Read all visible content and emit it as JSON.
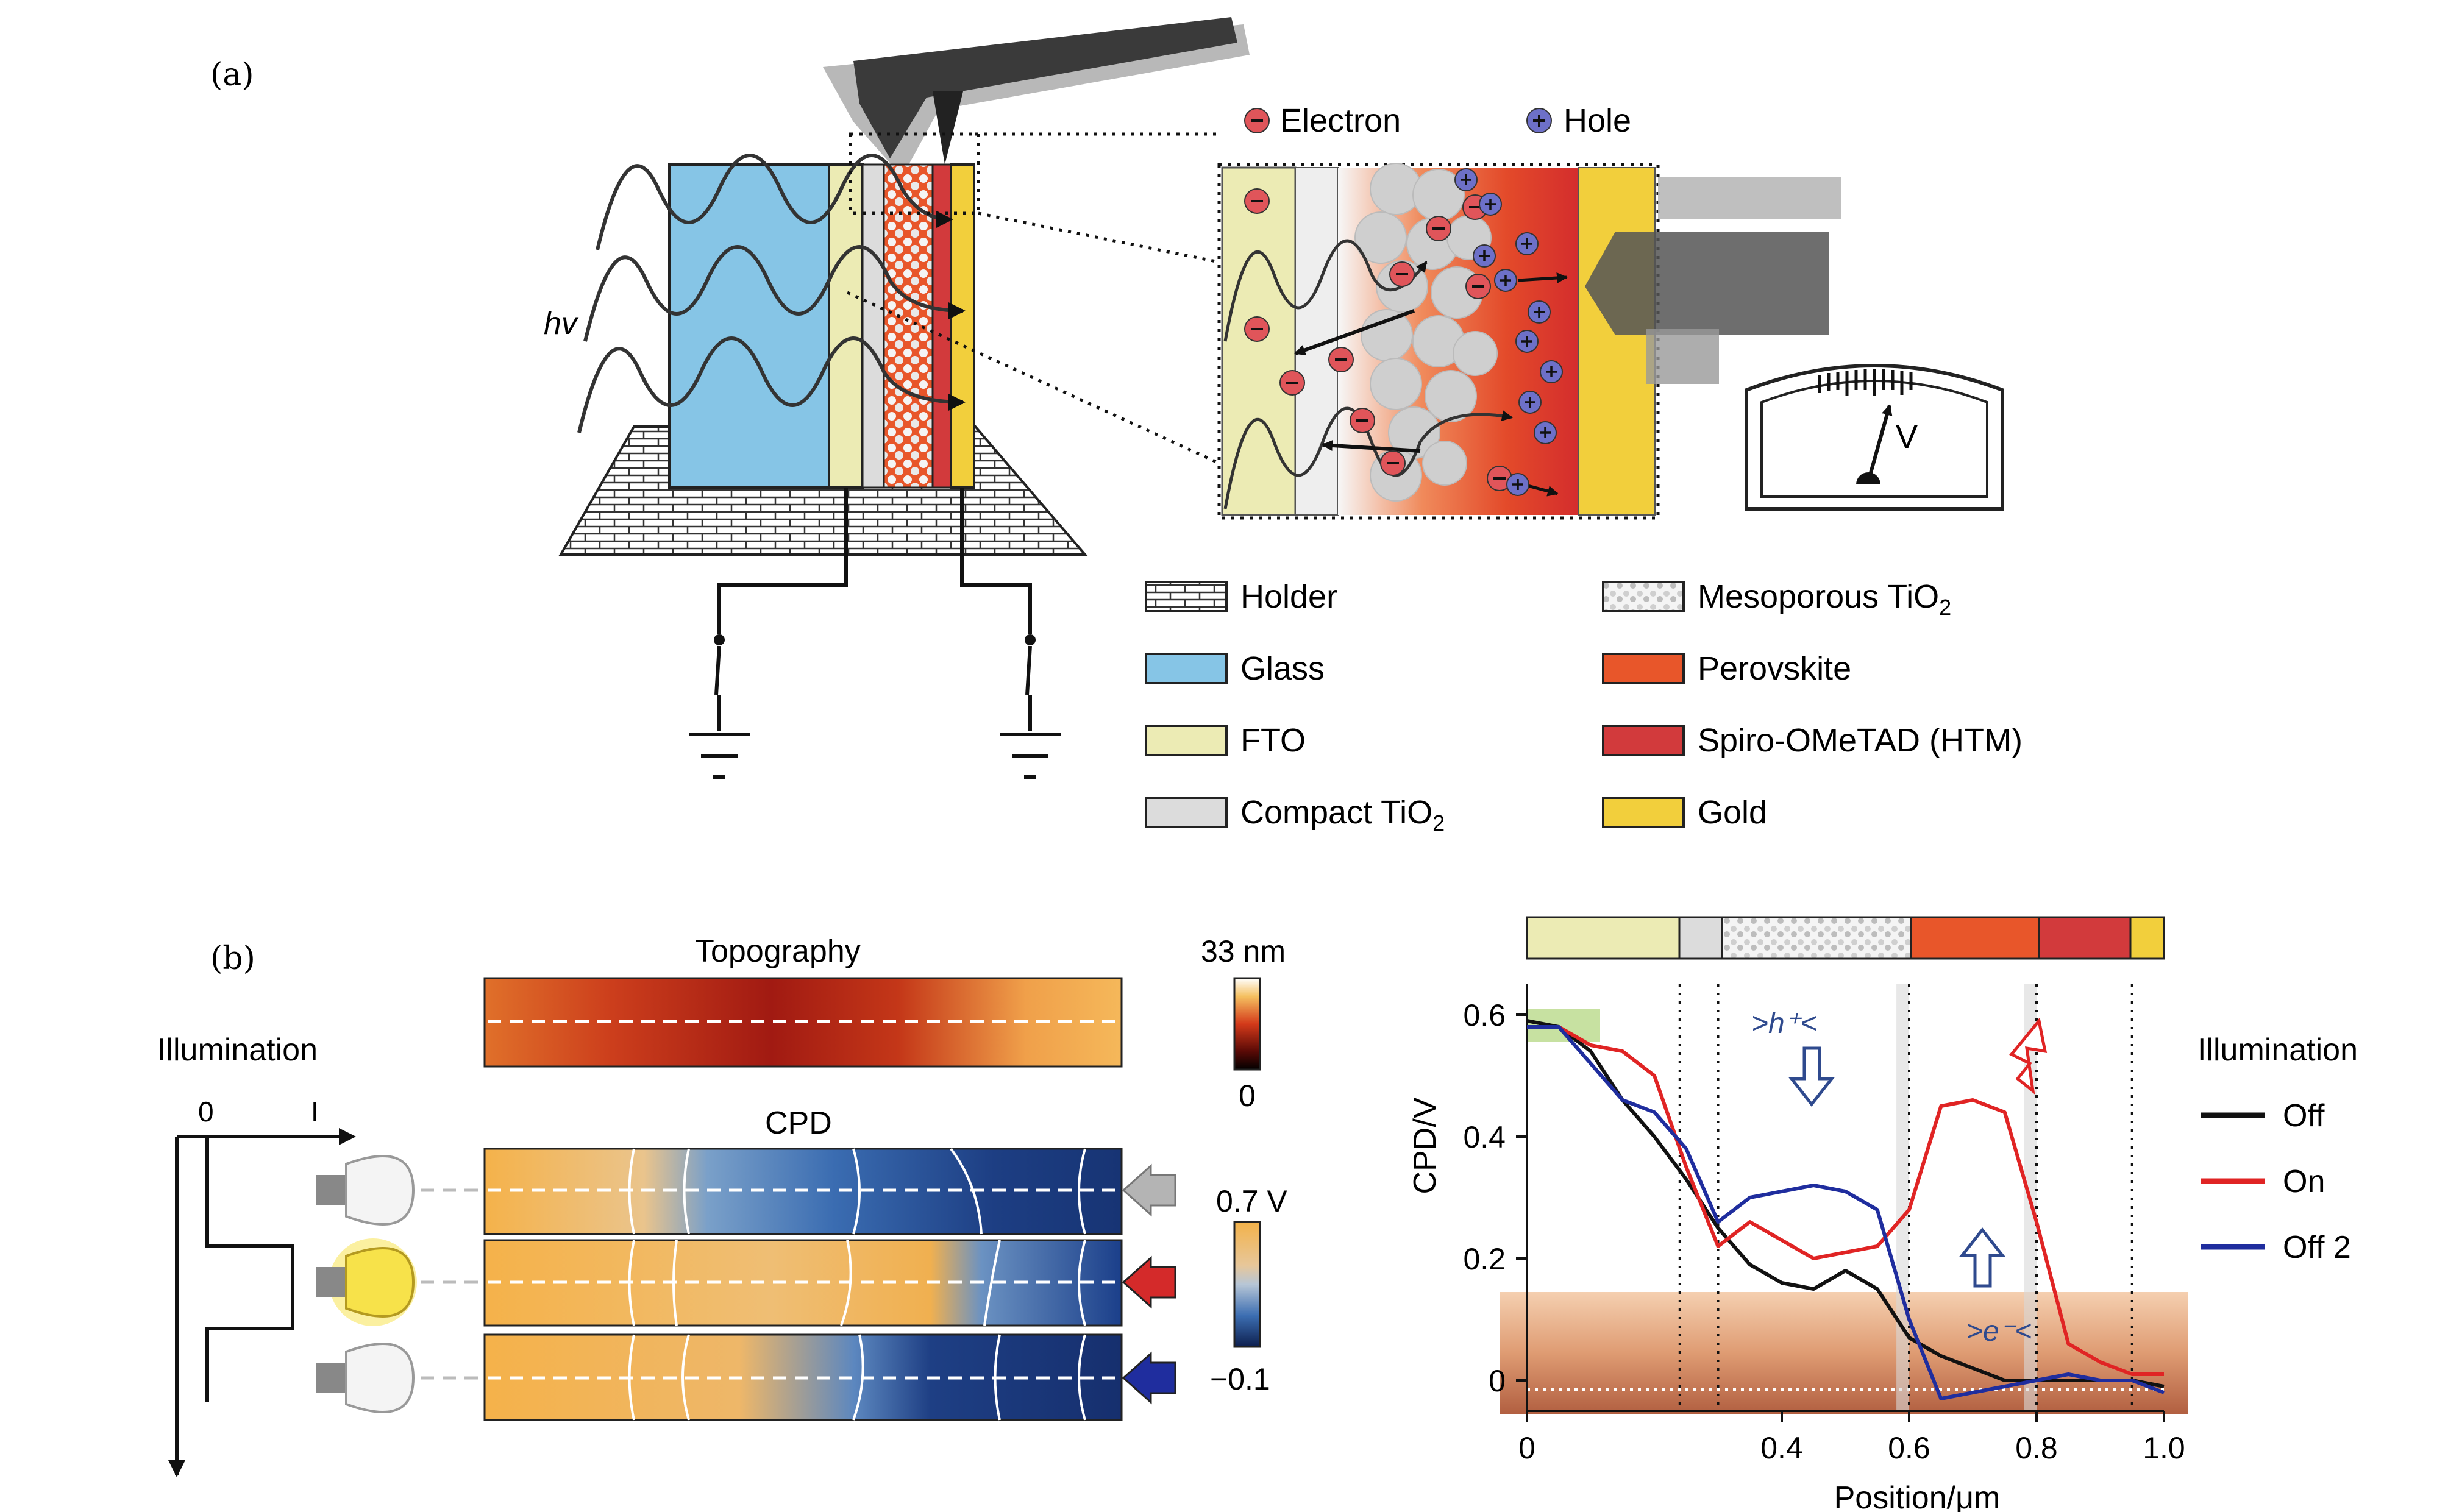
{
  "panel_a": {
    "label": "(a)",
    "hv_label": "hv",
    "inset": {
      "electron_label": "Electron",
      "hole_label": "Hole"
    },
    "meter_label": "V",
    "legend": [
      {
        "label": "Holder",
        "color": "#ffffff",
        "pattern": "brick"
      },
      {
        "label": "Glass",
        "color": "#86c5e6"
      },
      {
        "label": "FTO",
        "color": "#ecebb4"
      },
      {
        "label": "Compact TiO",
        "sub": "2",
        "color": "#dcdcdc"
      },
      {
        "label": "Mesoporous TiO",
        "sub": "2",
        "color": "#f0f0f0",
        "pattern": "dots"
      },
      {
        "label": "Perovskite",
        "color": "#e8562a"
      },
      {
        "label": "Spiro-OMeTAD (HTM)",
        "color": "#d23a3c"
      },
      {
        "label": "Gold",
        "color": "#f2cf3c"
      }
    ],
    "colors": {
      "glass": "#86c5e6",
      "fto": "#ecebb4",
      "compact": "#dcdcdc",
      "perovskite": "#e8562a",
      "htm": "#d23a3c",
      "gold": "#f2cf3c",
      "electron": "#e0555a",
      "hole": "#6d70c8"
    }
  },
  "panel_b": {
    "label": "(b)",
    "illumination_label": "Illumination",
    "axis_zero": "0",
    "axis_i": "I",
    "topography_title": "Topography",
    "cpd_title": "CPD",
    "topo_scale": {
      "max": "33 nm",
      "min": "0"
    },
    "cpd_scale": {
      "max": "0.7 V",
      "min": "−0.1"
    },
    "arrow_colors": [
      "#b4b4b4",
      "#d42a2a",
      "#1f2d9e"
    ]
  },
  "chart_data": {
    "type": "line",
    "xlabel": "Position/μm",
    "ylabel": "CPD/V",
    "xlim": [
      0,
      1.0
    ],
    "ylim": [
      -0.05,
      0.65
    ],
    "xticks": [
      "0",
      "0.4",
      "0.6",
      "0.8",
      "1.0"
    ],
    "xtick_values": [
      0,
      0.4,
      0.6,
      0.8,
      1.0
    ],
    "yticks": [
      "0",
      "0.2",
      "0.4",
      "0.6"
    ],
    "ytick_values": [
      0,
      0.2,
      0.4,
      0.6
    ],
    "boundaries": [
      0.24,
      0.3,
      0.6,
      0.8,
      0.95
    ],
    "legend_title": "Illumination",
    "annotation_h": ">h⁺<",
    "annotation_e": ">e⁻<",
    "series": [
      {
        "name": "Off",
        "color": "#111111",
        "x": [
          0,
          0.05,
          0.1,
          0.15,
          0.2,
          0.25,
          0.3,
          0.35,
          0.4,
          0.45,
          0.5,
          0.55,
          0.6,
          0.65,
          0.7,
          0.75,
          0.8,
          0.85,
          0.9,
          0.95,
          1.0
        ],
        "y": [
          0.59,
          0.58,
          0.54,
          0.46,
          0.4,
          0.33,
          0.25,
          0.19,
          0.16,
          0.15,
          0.18,
          0.15,
          0.07,
          0.04,
          0.02,
          0.0,
          0.0,
          0.0,
          0.0,
          0.0,
          -0.01
        ]
      },
      {
        "name": "On",
        "color": "#e02424",
        "x": [
          0,
          0.05,
          0.1,
          0.15,
          0.2,
          0.25,
          0.3,
          0.35,
          0.4,
          0.45,
          0.5,
          0.55,
          0.6,
          0.65,
          0.7,
          0.75,
          0.8,
          0.85,
          0.9,
          0.95,
          1.0
        ],
        "y": [
          0.58,
          0.58,
          0.55,
          0.54,
          0.5,
          0.35,
          0.22,
          0.26,
          0.23,
          0.2,
          0.21,
          0.22,
          0.28,
          0.45,
          0.46,
          0.44,
          0.26,
          0.06,
          0.03,
          0.01,
          0.01
        ]
      },
      {
        "name": "Off 2",
        "color": "#1f2d9e",
        "x": [
          0,
          0.05,
          0.1,
          0.15,
          0.2,
          0.25,
          0.3,
          0.35,
          0.4,
          0.45,
          0.5,
          0.55,
          0.6,
          0.65,
          0.7,
          0.75,
          0.8,
          0.85,
          0.9,
          0.95,
          1.0
        ],
        "y": [
          0.58,
          0.58,
          0.52,
          0.46,
          0.44,
          0.38,
          0.26,
          0.3,
          0.31,
          0.32,
          0.31,
          0.28,
          0.1,
          -0.03,
          -0.02,
          -0.01,
          0.0,
          0.01,
          0.0,
          0.0,
          -0.02
        ]
      }
    ]
  }
}
